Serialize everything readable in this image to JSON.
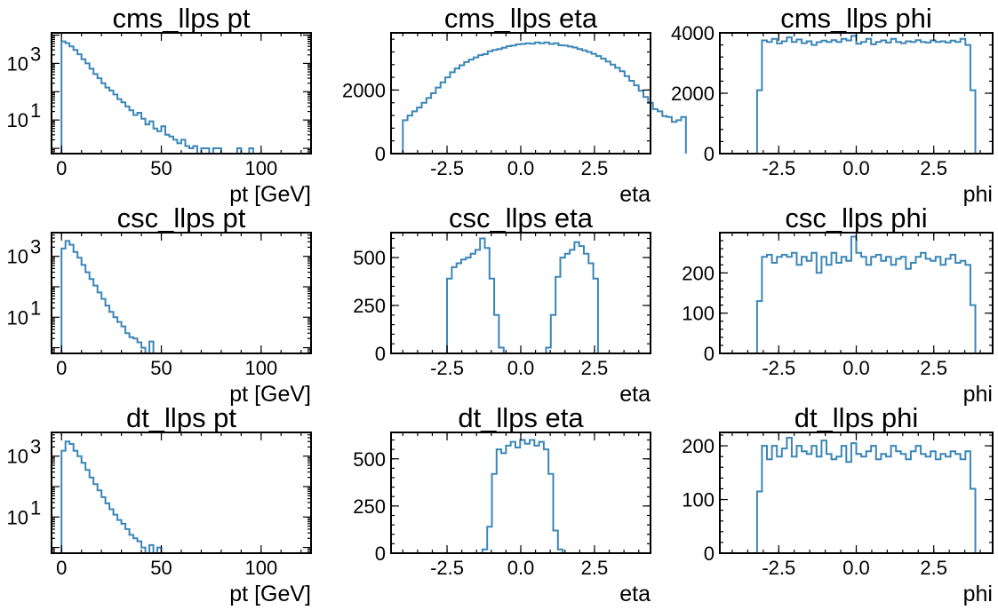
{
  "chart_data": [
    {
      "type": "histogram",
      "title": "cms_llps pt",
      "xlabel": "pt [GeV]",
      "xlim": [
        -5,
        125
      ],
      "ylog": true,
      "ylim": [
        0.65,
        12000
      ],
      "xticks": [
        {
          "v": 0,
          "label": "0"
        },
        {
          "v": 50,
          "label": "50"
        },
        {
          "v": 100,
          "label": "100"
        }
      ],
      "yticks": [
        {
          "v": 10,
          "label": "10",
          "exp": "1"
        },
        {
          "v": 1000,
          "label": "10",
          "exp": "3"
        }
      ],
      "bin_width": 2,
      "edges": [
        0
      ],
      "counts": [
        6000,
        5200,
        4000,
        3000,
        2100,
        1400,
        1000,
        650,
        420,
        300,
        200,
        140,
        110,
        80,
        55,
        42,
        30,
        22,
        15,
        18,
        11,
        7,
        9,
        5,
        4,
        6,
        3,
        2.6,
        2,
        1.5,
        2,
        1.2,
        1,
        1.2,
        0,
        1,
        1,
        0,
        1,
        1,
        0,
        0,
        0,
        0,
        1,
        0,
        0,
        1
      ]
    },
    {
      "type": "histogram",
      "title": "cms_llps eta",
      "xlabel": "eta",
      "xlim": [
        -4.4,
        4.4
      ],
      "ylim": [
        0,
        3800
      ],
      "xticks": [
        {
          "v": -2.5,
          "label": "-2.5"
        },
        {
          "v": 0,
          "label": "0.0"
        },
        {
          "v": 2.5,
          "label": "2.5"
        }
      ],
      "yticks": [
        {
          "v": 0,
          "label": "0"
        },
        {
          "v": 2000,
          "label": "2000"
        }
      ],
      "edges": [
        -4.0
      ],
      "bin_width": 0.16,
      "counts": [
        1050,
        1200,
        1330,
        1450,
        1600,
        1750,
        1900,
        2080,
        2240,
        2400,
        2560,
        2680,
        2780,
        2880,
        2960,
        3030,
        3100,
        3130,
        3220,
        3260,
        3290,
        3330,
        3380,
        3400,
        3440,
        3450,
        3470,
        3460,
        3500,
        3470,
        3500,
        3450,
        3470,
        3410,
        3400,
        3370,
        3340,
        3290,
        3250,
        3200,
        3140,
        3070,
        2990,
        2900,
        2800,
        2700,
        2590,
        2440,
        2290,
        2150,
        1980,
        1780,
        1600,
        1400,
        1330,
        1180,
        1150,
        1000,
        1050,
        1150
      ]
    },
    {
      "type": "histogram",
      "title": "cms_llps phi",
      "xlabel": "phi",
      "xlim": [
        -4.4,
        4.4
      ],
      "ylim": [
        0,
        4000
      ],
      "xticks": [
        {
          "v": -2.5,
          "label": "-2.5"
        },
        {
          "v": 0,
          "label": "0.0"
        },
        {
          "v": 2.5,
          "label": "2.5"
        }
      ],
      "yticks": [
        {
          "v": 0,
          "label": "0"
        },
        {
          "v": 2000,
          "label": "2000"
        },
        {
          "v": 4000,
          "label": "4000"
        }
      ],
      "edges": [
        -3.2
      ],
      "bin_width": 0.16,
      "counts": [
        2100,
        3750,
        3700,
        3800,
        3650,
        3720,
        3850,
        3700,
        3780,
        3660,
        3720,
        3600,
        3690,
        3740,
        3700,
        3760,
        3700,
        3800,
        3750,
        3900,
        3640,
        3700,
        3800,
        3620,
        3700,
        3750,
        3680,
        3800,
        3700,
        3660,
        3720,
        3700,
        3760,
        3700,
        3680,
        3750,
        3700,
        3720,
        3680,
        3740,
        3700,
        3800,
        3600,
        2100
      ]
    },
    {
      "type": "histogram",
      "title": "csc_llps pt",
      "xlabel": "pt [GeV]",
      "xlim": [
        -5,
        125
      ],
      "ylog": true,
      "ylim": [
        0.65,
        6000
      ],
      "xticks": [
        {
          "v": 0,
          "label": "0"
        },
        {
          "v": 50,
          "label": "50"
        },
        {
          "v": 100,
          "label": "100"
        }
      ],
      "yticks": [
        {
          "v": 10,
          "label": "10",
          "exp": "1"
        },
        {
          "v": 1000,
          "label": "10",
          "exp": "3"
        }
      ],
      "edges": [
        0
      ],
      "bin_width": 2,
      "counts": [
        1800,
        3200,
        2400,
        1400,
        900,
        520,
        300,
        180,
        110,
        65,
        40,
        24,
        15,
        10,
        7,
        5,
        3,
        2.2,
        2,
        1.5,
        1,
        0,
        1.6,
        0
      ]
    },
    {
      "type": "histogram",
      "title": "csc_llps eta",
      "xlabel": "eta",
      "xlim": [
        -4.4,
        4.4
      ],
      "ylim": [
        0,
        630
      ],
      "xticks": [
        {
          "v": -2.5,
          "label": "-2.5"
        },
        {
          "v": 0,
          "label": "0.0"
        },
        {
          "v": 2.5,
          "label": "2.5"
        }
      ],
      "yticks": [
        {
          "v": 0,
          "label": "0"
        },
        {
          "v": 250,
          "label": "250"
        },
        {
          "v": 500,
          "label": "500"
        }
      ],
      "edges": [
        -2.5
      ],
      "bin_width": 0.16,
      "counts": [
        390,
        450,
        470,
        490,
        500,
        520,
        540,
        600,
        550,
        390,
        200,
        30,
        0,
        0,
        0,
        0,
        0,
        0,
        0,
        0,
        0,
        30,
        200,
        400,
        500,
        520,
        540,
        580,
        560,
        520,
        470,
        390
      ]
    },
    {
      "type": "histogram",
      "title": "csc_llps phi",
      "xlabel": "phi",
      "xlim": [
        -4.4,
        4.4
      ],
      "ylim": [
        0,
        300
      ],
      "xticks": [
        {
          "v": -2.5,
          "label": "-2.5"
        },
        {
          "v": 0,
          "label": "0.0"
        },
        {
          "v": 2.5,
          "label": "2.5"
        }
      ],
      "yticks": [
        {
          "v": 0,
          "label": "0"
        },
        {
          "v": 100,
          "label": "100"
        },
        {
          "v": 200,
          "label": "200"
        }
      ],
      "edges": [
        -3.2
      ],
      "bin_width": 0.16,
      "counts": [
        130,
        240,
        245,
        225,
        240,
        245,
        240,
        250,
        220,
        240,
        230,
        250,
        200,
        240,
        220,
        250,
        225,
        240,
        230,
        290,
        250,
        240,
        220,
        240,
        245,
        230,
        240,
        220,
        235,
        240,
        210,
        225,
        240,
        250,
        235,
        230,
        240,
        220,
        235,
        245,
        225,
        230,
        220,
        120
      ]
    },
    {
      "type": "histogram",
      "title": "dt_llps pt",
      "xlabel": "pt [GeV]",
      "xlim": [
        -5,
        125
      ],
      "ylog": true,
      "ylim": [
        0.65,
        6000
      ],
      "xticks": [
        {
          "v": 0,
          "label": "0"
        },
        {
          "v": 50,
          "label": "50"
        },
        {
          "v": 100,
          "label": "100"
        }
      ],
      "yticks": [
        {
          "v": 10,
          "label": "10",
          "exp": "1"
        },
        {
          "v": 1000,
          "label": "10",
          "exp": "3"
        }
      ],
      "edges": [
        0
      ],
      "bin_width": 2,
      "counts": [
        1500,
        3000,
        2500,
        1500,
        1000,
        600,
        350,
        200,
        120,
        75,
        45,
        28,
        18,
        12,
        8,
        6,
        4,
        2.6,
        2,
        1.6,
        1,
        0,
        1.2,
        0,
        1
      ]
    },
    {
      "type": "histogram",
      "title": "dt_llps eta",
      "xlabel": "eta",
      "xlim": [
        -4.4,
        4.4
      ],
      "ylim": [
        0,
        640
      ],
      "xticks": [
        {
          "v": -2.5,
          "label": "-2.5"
        },
        {
          "v": 0,
          "label": "0.0"
        },
        {
          "v": 2.5,
          "label": "2.5"
        }
      ],
      "yticks": [
        {
          "v": 0,
          "label": "0"
        },
        {
          "v": 250,
          "label": "250"
        },
        {
          "v": 500,
          "label": "500"
        }
      ],
      "edges": [
        -1.3
      ],
      "bin_width": 0.16,
      "counts": [
        20,
        140,
        420,
        550,
        530,
        570,
        590,
        560,
        600,
        580,
        600,
        570,
        590,
        550,
        420,
        120,
        20
      ]
    },
    {
      "type": "histogram",
      "title": "dt_llps phi",
      "xlabel": "phi",
      "xlim": [
        -4.4,
        4.4
      ],
      "ylim": [
        0,
        225
      ],
      "xticks": [
        {
          "v": -2.5,
          "label": "-2.5"
        },
        {
          "v": 0,
          "label": "0.0"
        },
        {
          "v": 2.5,
          "label": "2.5"
        }
      ],
      "yticks": [
        {
          "v": 0,
          "label": "0"
        },
        {
          "v": 100,
          "label": "100"
        },
        {
          "v": 200,
          "label": "200"
        }
      ],
      "edges": [
        -3.2
      ],
      "bin_width": 0.16,
      "counts": [
        115,
        200,
        175,
        200,
        180,
        195,
        215,
        180,
        200,
        190,
        185,
        200,
        180,
        210,
        185,
        175,
        180,
        200,
        170,
        205,
        185,
        180,
        190,
        200,
        175,
        185,
        180,
        200,
        190,
        185,
        175,
        190,
        200,
        185,
        180,
        190,
        175,
        185,
        180,
        190,
        185,
        175,
        190,
        120
      ]
    }
  ],
  "colors": {
    "line": "#3a86b8",
    "axis": "#000000",
    "background": "#ffffff"
  }
}
